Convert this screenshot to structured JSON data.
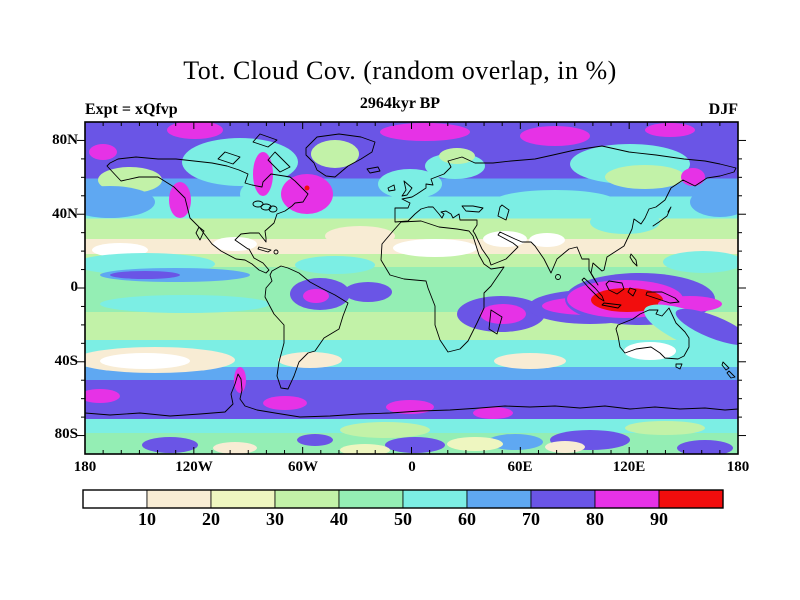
{
  "title": "Tot. Cloud Cov. (random overlap, in %)",
  "subtitle": "2964kyr BP",
  "experiment_label": "Expt = xQfvp",
  "season_label": "DJF",
  "axes": {
    "lat_tick_labels": [
      "80N",
      "40N",
      "0",
      "40S",
      "80S"
    ],
    "lon_tick_labels": [
      "180",
      "120W",
      "60W",
      "0",
      "60E",
      "120E",
      "180"
    ]
  },
  "colorbar": {
    "labels": [
      "10",
      "20",
      "30",
      "40",
      "50",
      "60",
      "70",
      "80",
      "90"
    ],
    "colors": [
      "#ffffff",
      "#f8ecd4",
      "#eef6c0",
      "#c2f2a8",
      "#94eeb4",
      "#7ceee4",
      "#5fa8f2",
      "#6a55e6",
      "#e632e6",
      "#f20d0d"
    ]
  },
  "chart_data": {
    "type": "heatmap",
    "title": "Tot. Cloud Cov. (random overlap, in %)",
    "subtitle": "2964kyr BP",
    "experiment": "xQfvp",
    "season": "DJF",
    "variable": "Total cloud cover (random overlap)",
    "units": "%",
    "projection": "global equirectangular (cylindrical) map with coastlines",
    "lon_range_deg": [
      -180,
      180
    ],
    "lat_range_deg": [
      -90,
      90
    ],
    "lon_tick_labels": [
      "180",
      "120W",
      "60W",
      "0",
      "60E",
      "120E",
      "180"
    ],
    "lat_tick_labels": [
      "80N",
      "40N",
      "0",
      "40S",
      "80S"
    ],
    "contour_levels_percent": [
      10,
      20,
      30,
      40,
      50,
      60,
      70,
      80,
      90
    ],
    "palette_hex": [
      "#ffffff",
      "#f8ecd4",
      "#eef6c0",
      "#c2f2a8",
      "#94eeb4",
      "#7ceee4",
      "#5fa8f2",
      "#6a55e6",
      "#e632e6",
      "#f20d0d"
    ],
    "legend_position": "horizontal bar below map",
    "grid": false,
    "features": [
      "70-80% (indigo) cloud cover over most of the Arctic and high-latitude North Atlantic/Pacific, with 80-90% (magenta) patches near 80-90N, the Labrador Sea, Quebec and the British Columbia coast",
      ">90% (red) maximum over Indonesia / Maritime Continent surrounded by 80-90% magenta band",
      "80-90% magenta ITCZ patches over northern South America, equatorial Atlantic, Congo basin and central Indian Ocean",
      "<10-20% (white/cream) minima over the Sahara, Arabia, NW India, Mexico and subtropical oceans near 20-30N and 20-30S",
      "Zonal 70-80% (indigo) storm-track belt across the Southern Ocean near 50-65S with scattered 80-90% magenta patches",
      "30-60% (pale green to cyan) over mid-latitudes, Australia interior 10-30%, Antarctica interior 30-50% with patches of 60-80%"
    ]
  }
}
